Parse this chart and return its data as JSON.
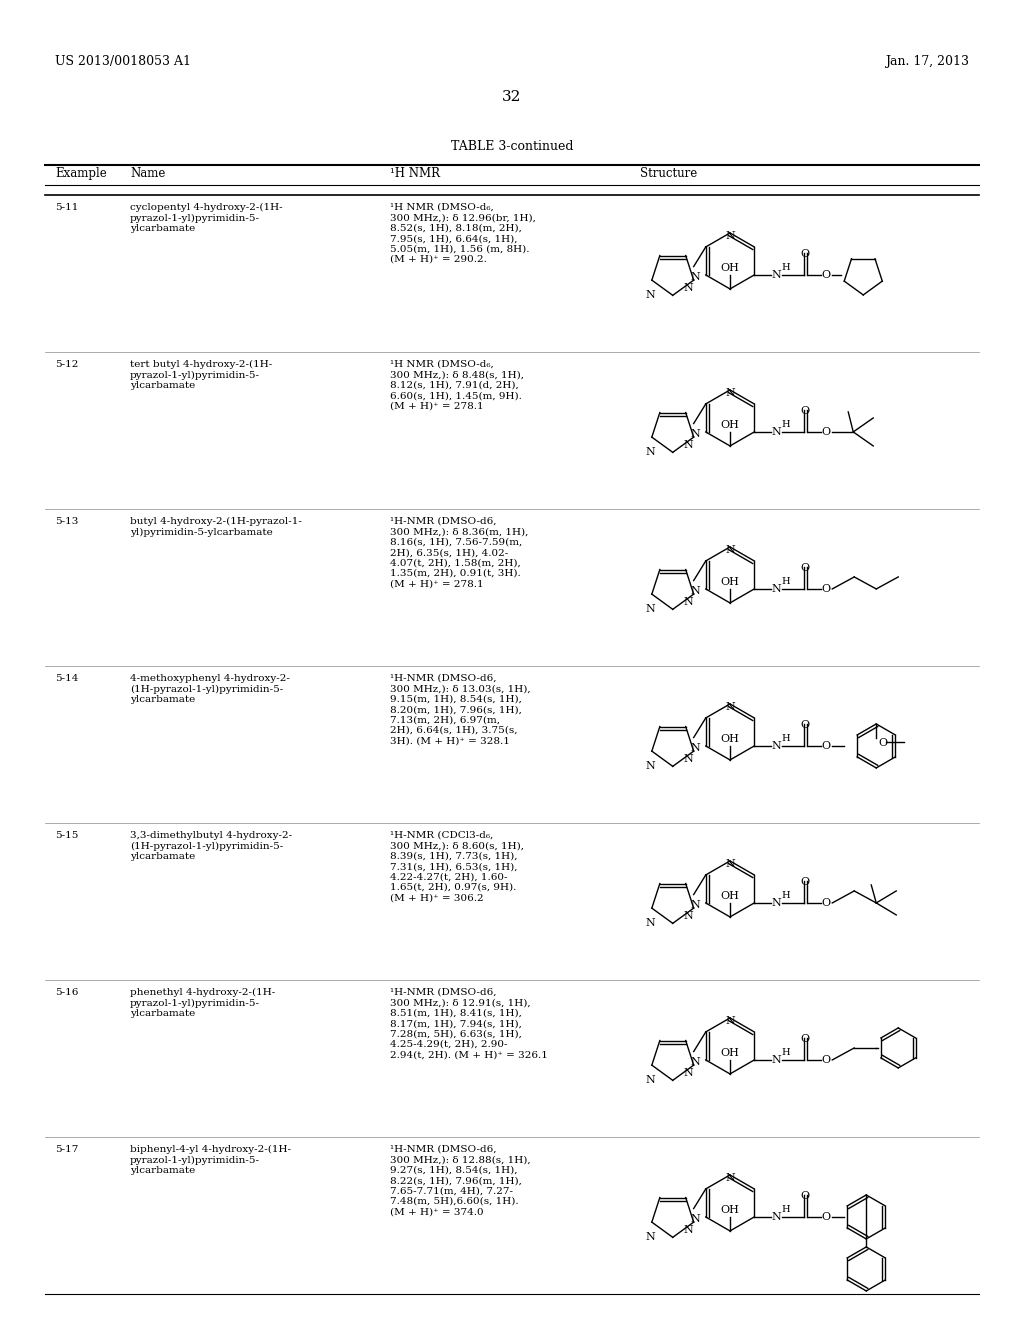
{
  "page_number": "32",
  "patent_number": "US 2013/0018053 A1",
  "patent_date": "Jan. 17, 2013",
  "table_title": "TABLE 3-continued",
  "col_headers": [
    "Example",
    "Name",
    "¹H NMR",
    "Structure"
  ],
  "rows": [
    {
      "example": "5-11",
      "name": "cyclopentyl 4-hydroxy-2-(1H-\npyrazol-1-yl)pyrimidin-5-\nylcarbamate",
      "nmr": "¹H NMR (DMSO-d₆,\n300 MHz,): δ 12.96(br, 1H),\n8.52(s, 1H), 8.18(m, 2H),\n7.95(s, 1H), 6.64(s, 1H),\n5.05(m, 1H), 1.56 (m, 8H).\n(M + H)⁺ = 290.2.",
      "side_group": "cyclopentyl"
    },
    {
      "example": "5-12",
      "name": "tert butyl 4-hydroxy-2-(1H-\npyrazol-1-yl)pyrimidin-5-\nylcarbamate",
      "nmr": "¹H NMR (DMSO-d₆,\n300 MHz,): δ 8.48(s, 1H),\n8.12(s, 1H), 7.91(d, 2H),\n6.60(s, 1H), 1.45(m, 9H).\n(M + H)⁺ = 278.1",
      "side_group": "tert-butyl"
    },
    {
      "example": "5-13",
      "name": "butyl 4-hydroxy-2-(1H-pyrazol-1-\nyl)pyrimidin-5-ylcarbamate",
      "nmr": "¹H-NMR (DMSO-d6,\n300 MHz,): δ 8.36(m, 1H),\n8.16(s, 1H), 7.56-7.59(m,\n2H), 6.35(s, 1H), 4.02-\n4.07(t, 2H), 1.58(m, 2H),\n1.35(m, 2H), 0.91(t, 3H).\n(M + H)⁺ = 278.1",
      "side_group": "butyl"
    },
    {
      "example": "5-14",
      "name": "4-methoxyphenyl 4-hydroxy-2-\n(1H-pyrazol-1-yl)pyrimidin-5-\nylcarbamate",
      "nmr": "¹H-NMR (DMSO-d6,\n300 MHz,): δ 13.03(s, 1H),\n9.15(m, 1H), 8.54(s, 1H),\n8.20(m, 1H), 7.96(s, 1H),\n7.13(m, 2H), 6.97(m,\n2H), 6.64(s, 1H), 3.75(s,\n3H). (M + H)⁺ = 328.1",
      "side_group": "methoxyphenyl"
    },
    {
      "example": "5-15",
      "name": "3,3-dimethylbutyl 4-hydroxy-2-\n(1H-pyrazol-1-yl)pyrimidin-5-\nylcarbamate",
      "nmr": "¹H-NMR (CDCl3-d₆,\n300 MHz,): δ 8.60(s, 1H),\n8.39(s, 1H), 7.73(s, 1H),\n7.31(s, 1H), 6.53(s, 1H),\n4.22-4.27(t, 2H), 1.60-\n1.65(t, 2H), 0.97(s, 9H).\n(M + H)⁺ = 306.2",
      "side_group": "3,3-dimethylbutyl"
    },
    {
      "example": "5-16",
      "name": "phenethyl 4-hydroxy-2-(1H-\npyrazol-1-yl)pyrimidin-5-\nylcarbamate",
      "nmr": "¹H-NMR (DMSO-d6,\n300 MHz,): δ 12.91(s, 1H),\n8.51(m, 1H), 8.41(s, 1H),\n8.17(m, 1H), 7.94(s, 1H),\n7.28(m, 5H), 6.63(s, 1H),\n4.25-4.29(t, 2H), 2.90-\n2.94(t, 2H). (M + H)⁺ = 326.1",
      "side_group": "phenethyl"
    },
    {
      "example": "5-17",
      "name": "biphenyl-4-yl 4-hydroxy-2-(1H-\npyrazol-1-yl)pyrimidin-5-\nylcarbamate",
      "nmr": "¹H-NMR (DMSO-d6,\n300 MHz,): δ 12.88(s, 1H),\n9.27(s, 1H), 8.54(s, 1H),\n8.22(s, 1H), 7.96(m, 1H),\n7.65-7.71(m, 4H), 7.27-\n7.48(m, 5H),6.60(s, 1H).\n(M + H)⁺ = 374.0",
      "side_group": "biphenyl"
    }
  ],
  "background_color": "#ffffff",
  "text_color": "#000000",
  "line_color": "#000000"
}
